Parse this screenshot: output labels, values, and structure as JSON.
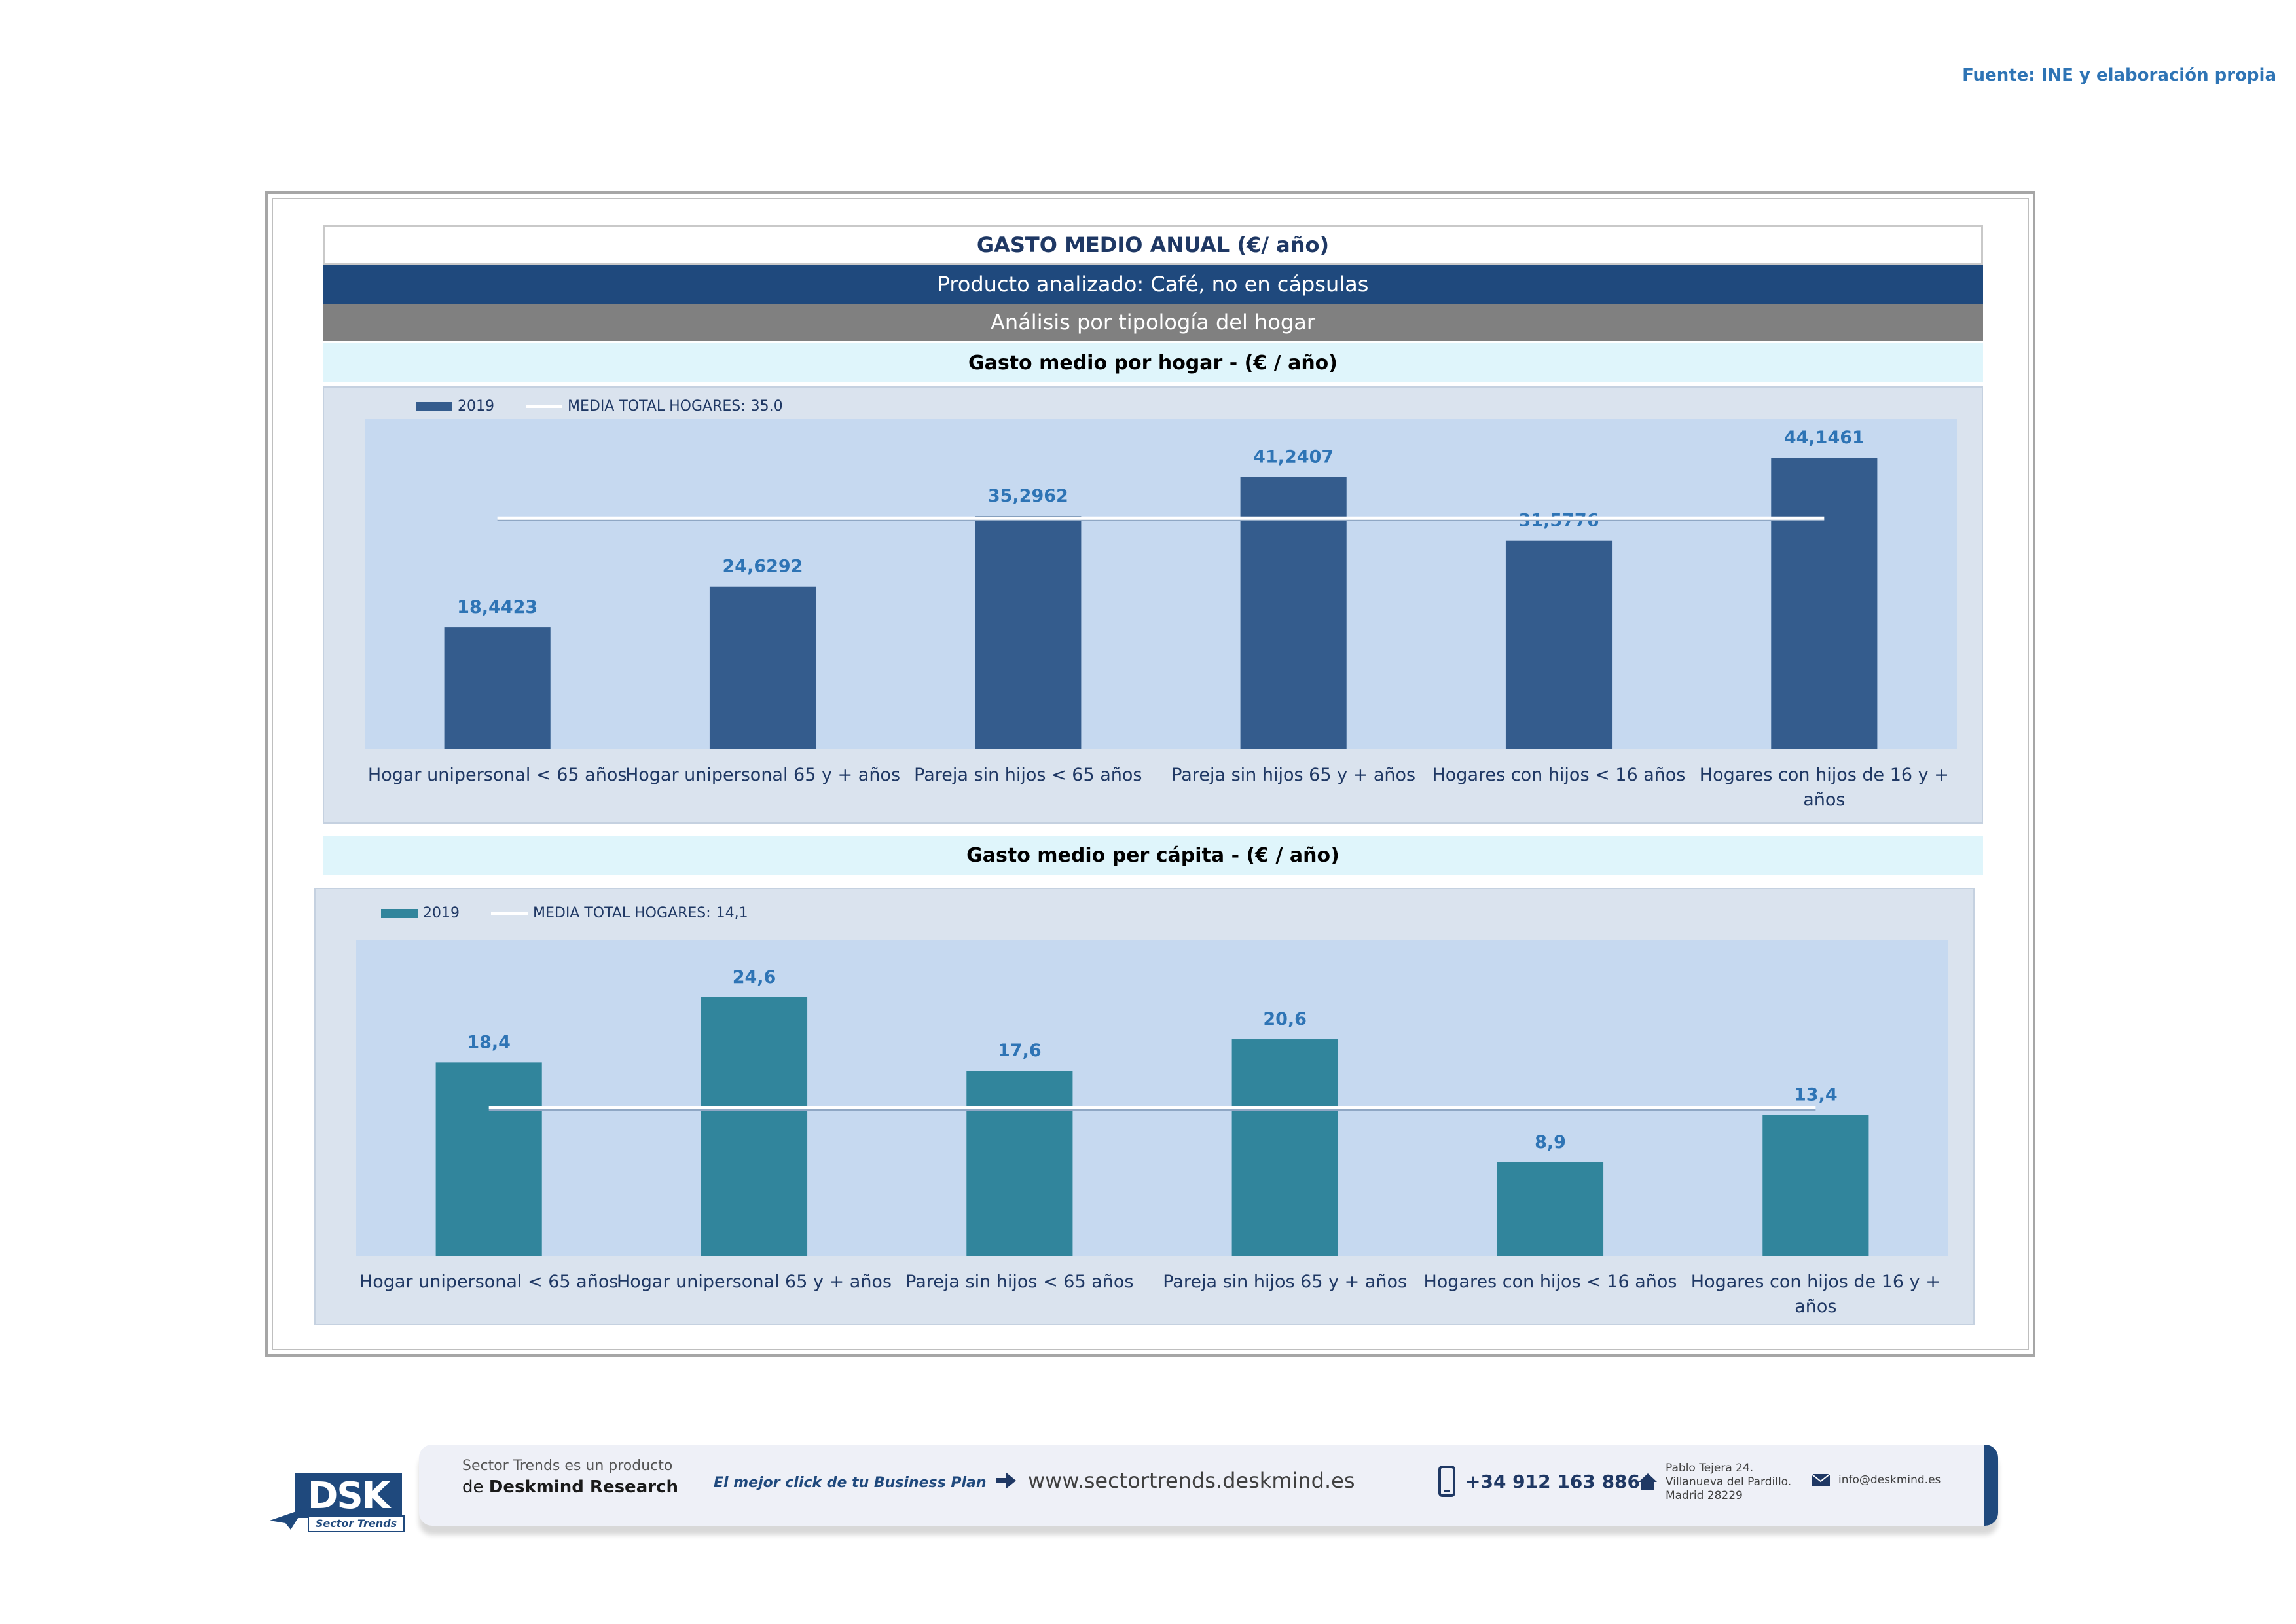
{
  "source_note": "Fuente: INE y elaboración propia",
  "header": {
    "title": "GASTO MEDIO ANUAL (€/ año)",
    "product": "Producto analizado: Café, no en cápsulas",
    "analysis": "Análisis por tipología del hogar"
  },
  "chart_data": [
    {
      "type": "bar",
      "title": "Gasto medio por hogar -  (€ / año)",
      "categories": [
        "Hogar unipersonal < 65 años",
        "Hogar unipersonal  65 y + años",
        "Pareja sin hijos < 65 años",
        "Pareja sin hijos 65 y + años",
        "Hogares con hijos < 16 años",
        "Hogares con hijos de 16 y + años"
      ],
      "series": [
        {
          "name": "2019",
          "values": [
            18.4423,
            24.6292,
            35.2962,
            41.2407,
            31.5776,
            44.1461
          ]
        }
      ],
      "value_labels": [
        "18,4423",
        "24,6292",
        "35,2962",
        "41,2407",
        "31,5776",
        "44,1461"
      ],
      "reference_line": {
        "label": "MEDIA TOTAL  HOGARES:",
        "value_text": "35.0",
        "value": 35.0
      },
      "ylim": [
        0,
        50
      ],
      "grid": false,
      "legend_position": "top-left",
      "colors": {
        "bar": "#345c8d",
        "line": "#ffffff",
        "labels": "#2e74b5"
      }
    },
    {
      "type": "bar",
      "title": "Gasto medio per cápita -  (€ / año)",
      "categories": [
        "Hogar unipersonal < 65 años",
        "Hogar unipersonal  65 y + años",
        "Pareja sin hijos < 65 años",
        "Pareja sin hijos 65 y + años",
        "Hogares con hijos < 16 años",
        "Hogares con hijos de 16 y + años"
      ],
      "series": [
        {
          "name": "2019",
          "values": [
            18.4,
            24.6,
            17.6,
            20.6,
            8.9,
            13.4
          ]
        }
      ],
      "value_labels": [
        "18,4",
        "24,6",
        "17,6",
        "20,6",
        "8,9",
        "13,4"
      ],
      "reference_line": {
        "label": "MEDIA TOTAL  HOGARES:",
        "value_text": "14,1",
        "value": 14.1
      },
      "ylim": [
        0,
        30
      ],
      "grid": false,
      "legend_position": "top-left",
      "colors": {
        "bar": "#31859c",
        "line": "#ffffff",
        "labels": "#2e74b5"
      }
    }
  ],
  "footer": {
    "logo_text": "DSK",
    "logo_sub": "Sector Trends",
    "product_line1": "Sector Trends es un producto",
    "product_line2_prefix": "de ",
    "product_line2_brand": "Deskmind Research",
    "slogan": "El mejor click de tu Business Plan",
    "website": "www.sectortrends.deskmind.es",
    "phone": "+34 912 163 886",
    "address": [
      "Pablo Tejera 24.",
      "Villanueva del Pardillo.",
      "Madrid 28229"
    ],
    "email": "info@deskmind.es",
    "icons": [
      "arrow-icon",
      "phone-icon",
      "home-icon",
      "mail-icon"
    ]
  }
}
